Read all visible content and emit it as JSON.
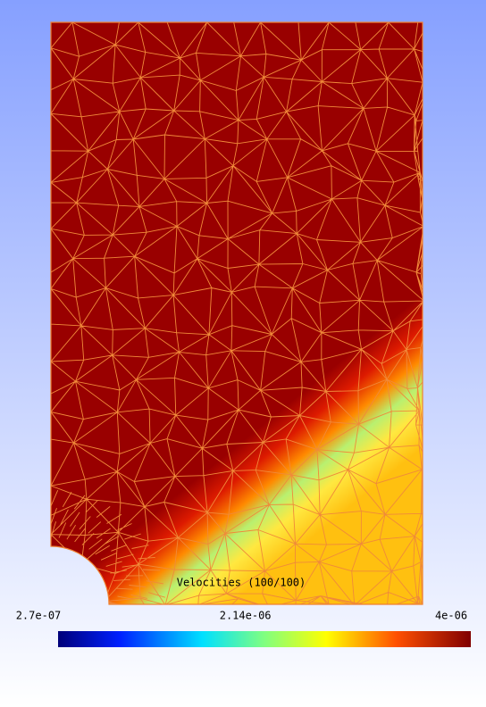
{
  "legend": {
    "title": "Velocities (100/100)",
    "ticks": [
      {
        "value": 2.7e-07,
        "label": "2.7e-07"
      },
      {
        "value": 2.14e-06,
        "label": "2.14e-06"
      },
      {
        "value": 4e-06,
        "label": "4e-06"
      }
    ]
  }
}
